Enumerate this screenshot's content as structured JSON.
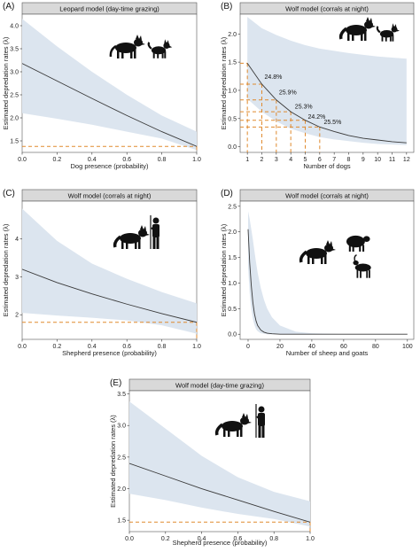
{
  "colors": {
    "band": "#dce5ef",
    "line": "#3a3a3a",
    "guide": "#e08a2e",
    "strip_bg": "#d9d9d9",
    "silhouette": "#111111"
  },
  "chart_data": [
    {
      "tag": "(A)",
      "title": "Leopard model (day-time grazing)",
      "type": "line",
      "xlabel": "Dog presence (probability)",
      "ylabel": "Estimated depredation rates (λ)",
      "xlim": [
        0,
        1
      ],
      "ylim": [
        1.25,
        4.25
      ],
      "xticks": [
        0.0,
        0.2,
        0.4,
        0.6,
        0.8,
        1.0
      ],
      "xtick_labels": [
        "0.0",
        "0.2",
        "0.4",
        "0.6",
        "0.8",
        "1.0"
      ],
      "yticks": [
        1.5,
        2.0,
        2.5,
        3.0,
        3.5,
        4.0
      ],
      "ytick_labels": [
        "1.5",
        "2.0",
        "2.5",
        "3.0",
        "3.5",
        "4.0"
      ],
      "icons": [
        "leopard-icon",
        "dog-icon"
      ],
      "x": [
        0.0,
        0.2,
        0.4,
        0.6,
        0.8,
        1.0
      ],
      "y": [
        3.18,
        2.8,
        2.42,
        2.05,
        1.7,
        1.38
      ],
      "lower": [
        2.1,
        1.98,
        1.85,
        1.7,
        1.55,
        1.3
      ],
      "upper": [
        4.15,
        3.55,
        3.0,
        2.5,
        2.05,
        1.7
      ],
      "guides": [
        {
          "x": 1.0,
          "y": 1.38
        }
      ],
      "annotations": []
    },
    {
      "tag": "(B)",
      "title": "Wolf model (corrals at night)",
      "type": "line",
      "xlabel": "Number of dogs",
      "ylabel": "Estimated depredation rates (λ)",
      "xlim": [
        0.5,
        12.5
      ],
      "ylim": [
        -0.1,
        2.35
      ],
      "xticks": [
        1,
        2,
        3,
        4,
        5,
        6,
        7,
        8,
        9,
        10,
        11,
        12
      ],
      "xtick_labels": [
        "1",
        "2",
        "3",
        "4",
        "5",
        "6",
        "7",
        "8",
        "9",
        "10",
        "11",
        "12"
      ],
      "yticks": [
        0.0,
        0.5,
        1.0,
        1.5,
        2.0
      ],
      "ytick_labels": [
        "0.0",
        "0.5",
        "1.0",
        "1.5",
        "2.0"
      ],
      "icons": [
        "wolf-icon",
        "dog-icon"
      ],
      "x": [
        1,
        2,
        3,
        4,
        5,
        6,
        7,
        8,
        9,
        10,
        11,
        12
      ],
      "y": [
        1.48,
        1.11,
        0.83,
        0.62,
        0.47,
        0.35,
        0.27,
        0.2,
        0.15,
        0.12,
        0.09,
        0.07
      ],
      "lower": [
        0.85,
        0.62,
        0.45,
        0.32,
        0.24,
        0.17,
        0.13,
        0.1,
        0.07,
        0.05,
        0.04,
        0.03
      ],
      "upper": [
        2.3,
        2.1,
        1.98,
        1.88,
        1.8,
        1.74,
        1.7,
        1.66,
        1.63,
        1.6,
        1.58,
        1.56
      ],
      "guides": [
        {
          "x": 1,
          "y": 1.48
        },
        {
          "x": 2,
          "y": 1.11
        },
        {
          "x": 3,
          "y": 0.83
        },
        {
          "x": 4,
          "y": 0.62
        },
        {
          "x": 5,
          "y": 0.47
        },
        {
          "x": 6,
          "y": 0.35
        }
      ],
      "annotations": [
        {
          "text": "24.8%",
          "x": 2.0,
          "y": 1.2
        },
        {
          "text": "25.9%",
          "x": 3.0,
          "y": 0.93
        },
        {
          "text": "25.3%",
          "x": 4.1,
          "y": 0.68
        },
        {
          "text": "24.2%",
          "x": 5.0,
          "y": 0.5
        },
        {
          "text": "25.5%",
          "x": 6.1,
          "y": 0.4
        }
      ]
    },
    {
      "tag": "(C)",
      "title": "Wolf model (corrals at night)",
      "type": "line",
      "xlabel": "Shepherd presence (probability)",
      "ylabel": "Estimated depredation rates (λ)",
      "xlim": [
        0,
        1
      ],
      "ylim": [
        1.35,
        5.0
      ],
      "xticks": [
        0.0,
        0.2,
        0.4,
        0.6,
        0.8,
        1.0
      ],
      "xtick_labels": [
        "0.0",
        "0.2",
        "0.4",
        "0.6",
        "0.8",
        "1.0"
      ],
      "yticks": [
        2,
        3,
        4
      ],
      "ytick_labels": [
        "2",
        "3",
        "4"
      ],
      "icons": [
        "wolf-icon",
        "shepherd-icon"
      ],
      "x": [
        0.0,
        0.2,
        0.4,
        0.6,
        0.8,
        1.0
      ],
      "y": [
        3.2,
        2.85,
        2.55,
        2.28,
        2.03,
        1.8
      ],
      "lower": [
        2.05,
        1.98,
        1.92,
        1.85,
        1.72,
        1.5
      ],
      "upper": [
        4.8,
        3.95,
        3.35,
        2.95,
        2.6,
        2.3
      ],
      "guides": [
        {
          "x": 1.0,
          "y": 1.8
        }
      ],
      "annotations": []
    },
    {
      "tag": "(D)",
      "title": "Wolf model (corrals at night)",
      "type": "line",
      "xlabel": "Number of sheep and goats",
      "ylabel": "Estimated depredation rates (λ)",
      "xlim": [
        -5,
        104
      ],
      "ylim": [
        -0.1,
        2.6
      ],
      "xticks": [
        0,
        20,
        40,
        60,
        80,
        100
      ],
      "xtick_labels": [
        "0",
        "20",
        "40",
        "60",
        "80",
        "100"
      ],
      "yticks": [
        0.0,
        0.5,
        1.0,
        1.5,
        2.0,
        2.5
      ],
      "ytick_labels": [
        "0.0",
        "0.5",
        "1.0",
        "1.5",
        "2.0",
        "2.5"
      ],
      "icons": [
        "wolf-icon",
        "sheep-icon",
        "goat-icon"
      ],
      "x": [
        0,
        1,
        2,
        3,
        4,
        5,
        6,
        8,
        10,
        12,
        15,
        20,
        30,
        40,
        60,
        80,
        100
      ],
      "y": [
        2.05,
        1.4,
        0.95,
        0.62,
        0.4,
        0.26,
        0.17,
        0.08,
        0.04,
        0.02,
        0.01,
        0.0,
        0.0,
        0.0,
        0.0,
        0.0,
        0.0
      ],
      "lower": [
        1.3,
        0.8,
        0.5,
        0.3,
        0.18,
        0.1,
        0.06,
        0.02,
        0.01,
        0.0,
        0.0,
        0.0,
        0.0,
        0.0,
        0.0,
        0.0,
        0.0
      ],
      "upper": [
        2.4,
        2.25,
        2.05,
        1.85,
        1.62,
        1.4,
        1.2,
        0.9,
        0.67,
        0.5,
        0.33,
        0.17,
        0.05,
        0.02,
        0.0,
        0.0,
        0.0
      ],
      "guides": [],
      "annotations": []
    },
    {
      "tag": "(E)",
      "title": "Wolf model (day-time grazing)",
      "type": "line",
      "xlabel": "Shepherd presence (probability)",
      "ylabel": "Estimated depredation rates (λ)",
      "xlim": [
        0,
        1
      ],
      "ylim": [
        1.32,
        3.55
      ],
      "xticks": [
        0.0,
        0.2,
        0.4,
        0.6,
        0.8,
        1.0
      ],
      "xtick_labels": [
        "0.0",
        "0.2",
        "0.4",
        "0.6",
        "0.8",
        "1.0"
      ],
      "yticks": [
        1.5,
        2.0,
        2.5,
        3.0,
        3.5
      ],
      "ytick_labels": [
        "1.5",
        "2.0",
        "2.5",
        "3.0",
        "3.5"
      ],
      "icons": [
        "wolf-icon",
        "shepherd-icon"
      ],
      "x": [
        0.0,
        0.2,
        0.4,
        0.6,
        0.8,
        1.0
      ],
      "y": [
        2.4,
        2.2,
        2.0,
        1.82,
        1.64,
        1.47
      ],
      "lower": [
        1.92,
        1.82,
        1.7,
        1.6,
        1.52,
        1.4
      ],
      "upper": [
        3.38,
        2.95,
        2.52,
        2.18,
        1.95,
        1.8
      ],
      "guides": [
        {
          "x": 1.0,
          "y": 1.47
        }
      ],
      "annotations": []
    }
  ]
}
